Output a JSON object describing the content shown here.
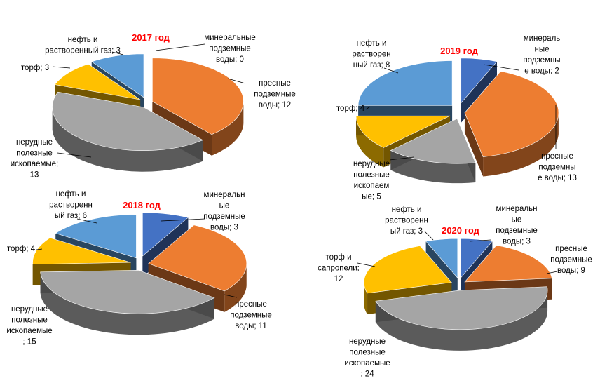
{
  "colors": {
    "blue": "#4472C4",
    "orange": "#ED7D31",
    "gray": "#A5A5A5",
    "yellow": "#FFC000",
    "lightblue": "#5B9BD5",
    "title": "#FF0000"
  },
  "chart_data": [
    {
      "type": "pie",
      "title": "2017 год",
      "slices": [
        {
          "name": "минеральные подземные воды",
          "value": 0,
          "label": [
            "минеральные",
            "подземные",
            "воды; 0"
          ],
          "color": "#4472C4"
        },
        {
          "name": "пресные подземные воды",
          "value": 12,
          "label": [
            "пресные",
            "подземные",
            "воды; 12"
          ],
          "color": "#ED7D31"
        },
        {
          "name": "нерудные полезные ископаемые",
          "value": 13,
          "label": [
            "нерудные",
            "полезные",
            "ископаемые;",
            "13"
          ],
          "color": "#A5A5A5"
        },
        {
          "name": "торф",
          "value": 3,
          "label": [
            "торф; 3"
          ],
          "color": "#FFC000"
        },
        {
          "name": "нефть и растворенный газ",
          "value": 3,
          "label": [
            "нефть и",
            "растворенный газ; 3"
          ],
          "color": "#5B9BD5"
        }
      ]
    },
    {
      "type": "pie",
      "title": "2019 год",
      "slices": [
        {
          "name": "минеральные подземные воды",
          "value": 2,
          "label": [
            "минераль",
            "ные",
            "подземны",
            "е воды; 2"
          ],
          "color": "#4472C4"
        },
        {
          "name": "пресные подземные воды",
          "value": 13,
          "label": [
            "пресные",
            "подземны",
            "е воды; 13"
          ],
          "color": "#ED7D31"
        },
        {
          "name": "нерудные полезные ископаемые",
          "value": 5,
          "label": [
            "нерудные",
            "полезные",
            "ископаем",
            "ые; 5"
          ],
          "color": "#A5A5A5"
        },
        {
          "name": "торф",
          "value": 4,
          "label": [
            "торф; 4"
          ],
          "color": "#FFC000"
        },
        {
          "name": "нефть и растворенный газ",
          "value": 8,
          "label": [
            "нефть и",
            "растворен",
            "ный газ; 8"
          ],
          "color": "#5B9BD5"
        }
      ]
    },
    {
      "type": "pie",
      "title": "2018 год",
      "slices": [
        {
          "name": "минеральные подземные воды",
          "value": 3,
          "label": [
            "минеральн",
            "ые",
            "подземные",
            "воды; 3"
          ],
          "color": "#4472C4"
        },
        {
          "name": "пресные подземные воды",
          "value": 11,
          "label": [
            "пресные",
            "подземные",
            "воды; 11"
          ],
          "color": "#ED7D31"
        },
        {
          "name": "нерудные полезные ископаемые",
          "value": 15,
          "label": [
            "нерудные",
            "полезные",
            "ископаемые",
            "; 15"
          ],
          "color": "#A5A5A5"
        },
        {
          "name": "торф",
          "value": 4,
          "label": [
            "торф; 4"
          ],
          "color": "#FFC000"
        },
        {
          "name": "нефть и растворенный газ",
          "value": 6,
          "label": [
            "нефть и",
            "растворенн",
            "ый газ; 6"
          ],
          "color": "#5B9BD5"
        }
      ]
    },
    {
      "type": "pie",
      "title": "2020 год",
      "slices": [
        {
          "name": "минеральные подземные воды",
          "value": 3,
          "label": [
            "минеральн",
            "ые",
            "подземные",
            "воды; 3"
          ],
          "color": "#4472C4"
        },
        {
          "name": "пресные подземные воды",
          "value": 9,
          "label": [
            "пресные",
            "подземные",
            "воды; 9"
          ],
          "color": "#ED7D31"
        },
        {
          "name": "нерудные полезные ископаемые",
          "value": 24,
          "label": [
            "нерудные",
            "полезные",
            "ископаемые",
            "; 24"
          ],
          "color": "#A5A5A5"
        },
        {
          "name": "торф и сапропели",
          "value": 12,
          "label": [
            "торф и",
            "сапропели;",
            "12"
          ],
          "color": "#FFC000"
        },
        {
          "name": "нефть и растворенный газ",
          "value": 3,
          "label": [
            "нефть и",
            "растворенн",
            "ый газ; 3"
          ],
          "color": "#5B9BD5"
        }
      ]
    }
  ]
}
